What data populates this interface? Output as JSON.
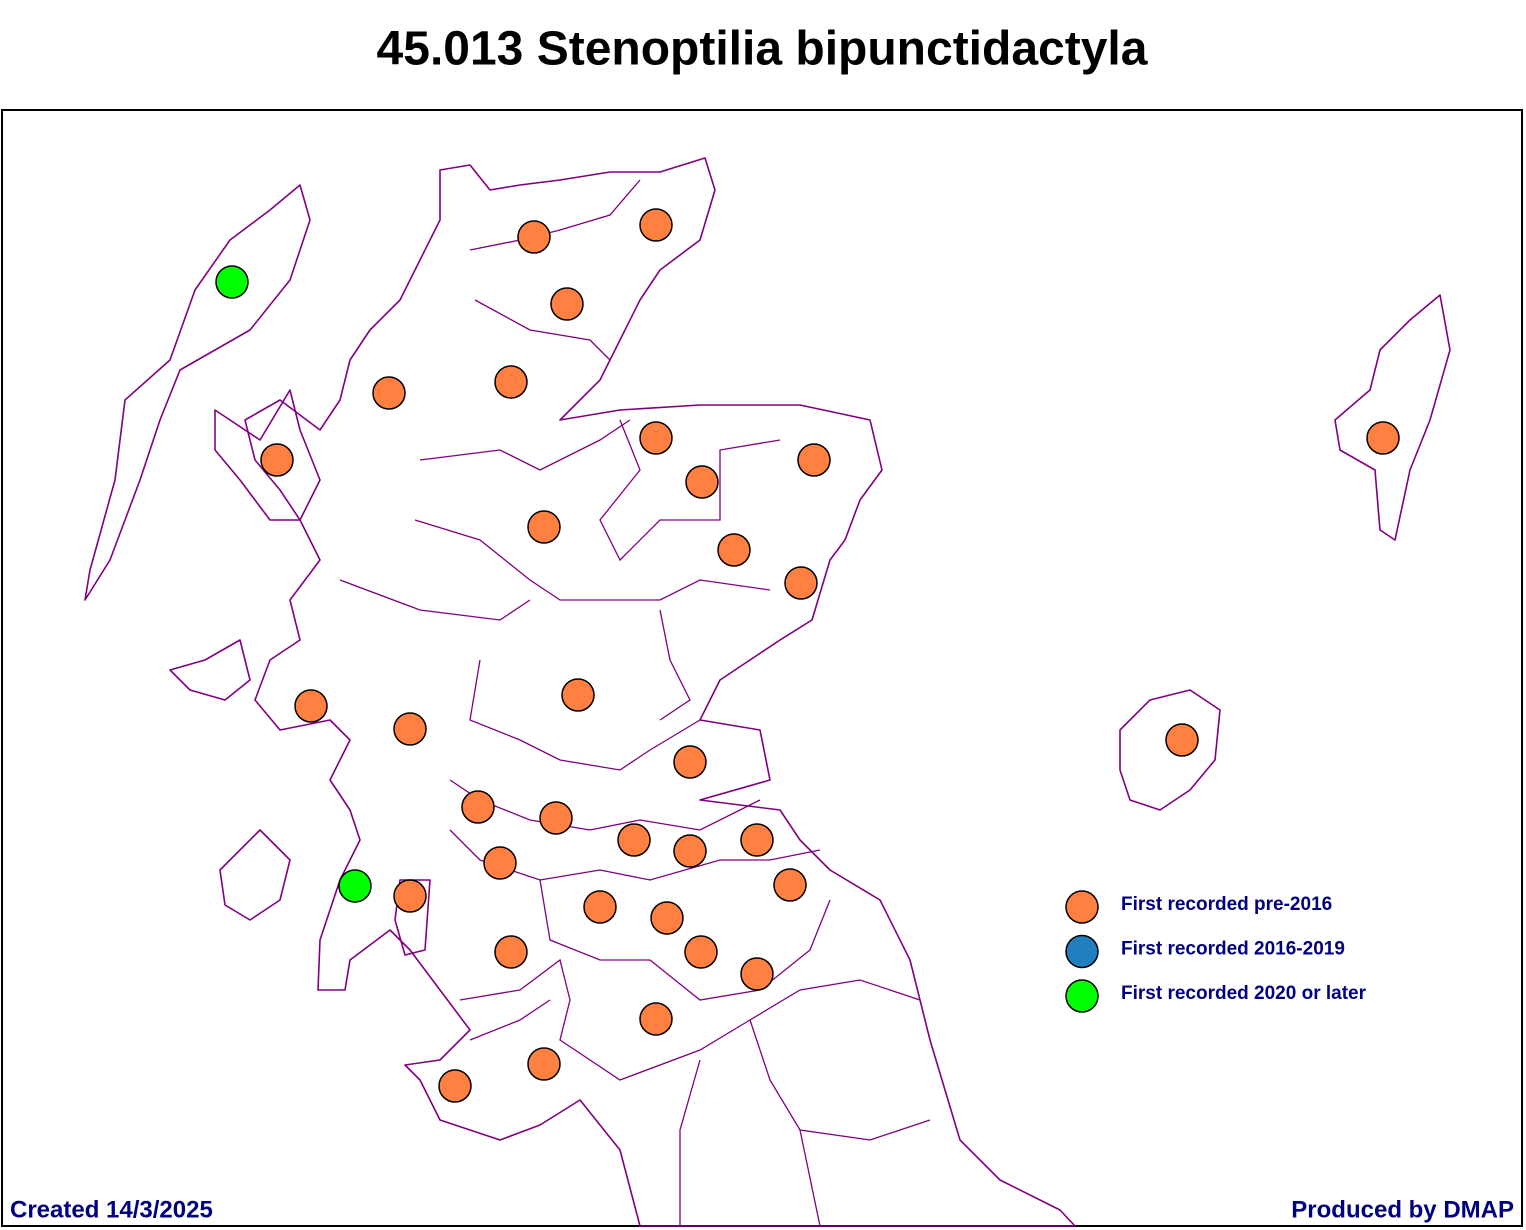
{
  "title": "45.013 Stenoptilia bipunctidactyla",
  "legend": [
    {
      "label": "First recorded pre-2016",
      "color": "#ff8040"
    },
    {
      "label": "First recorded 2016-2019",
      "color": "#1f7fbf"
    },
    {
      "label": "First recorded 2020 or later",
      "color": "#00ff00"
    }
  ],
  "footer": {
    "created": "Created 14/3/2025",
    "producer": "Produced by DMAP"
  }
}
